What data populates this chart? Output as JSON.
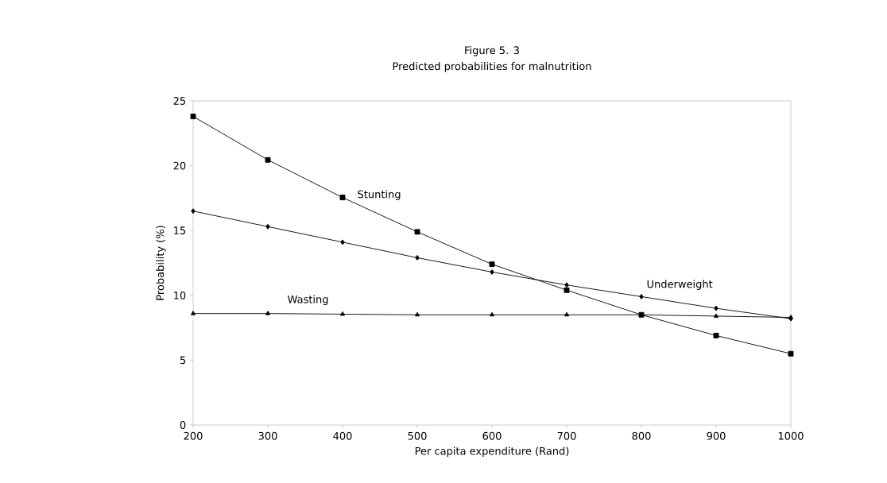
{
  "chart_data": {
    "type": "line",
    "title": "Figure 5. 3",
    "subtitle": "Predicted probabilities for malnutrition",
    "xlabel": "Per capita expenditure (Rand)",
    "ylabel": "Probability (%)",
    "x": [
      200,
      300,
      400,
      500,
      600,
      700,
      800,
      900,
      1000
    ],
    "series": [
      {
        "name": "Stunting",
        "color": "#000000",
        "marker": "square",
        "values": [
          23.8,
          20.45,
          17.55,
          14.9,
          12.4,
          10.4,
          8.5,
          6.9,
          5.5
        ]
      },
      {
        "name": "Underweight",
        "color": "#000000",
        "marker": "diamond",
        "values": [
          16.5,
          15.3,
          14.1,
          12.9,
          11.8,
          10.8,
          9.9,
          9.0,
          8.2
        ]
      },
      {
        "name": "Wasting",
        "color": "#000000",
        "marker": "triangle",
        "values": [
          8.6,
          8.6,
          8.55,
          8.5,
          8.5,
          8.5,
          8.5,
          8.4,
          8.3
        ]
      }
    ],
    "xlim": [
      200,
      1000
    ],
    "xticks": [
      200,
      300,
      400,
      500,
      600,
      700,
      800,
      900,
      1000
    ],
    "ylim": [
      0,
      25
    ],
    "yticks": [
      0,
      5,
      10,
      15,
      20,
      25
    ],
    "grid": false,
    "legend": false,
    "line_style": "solid"
  }
}
